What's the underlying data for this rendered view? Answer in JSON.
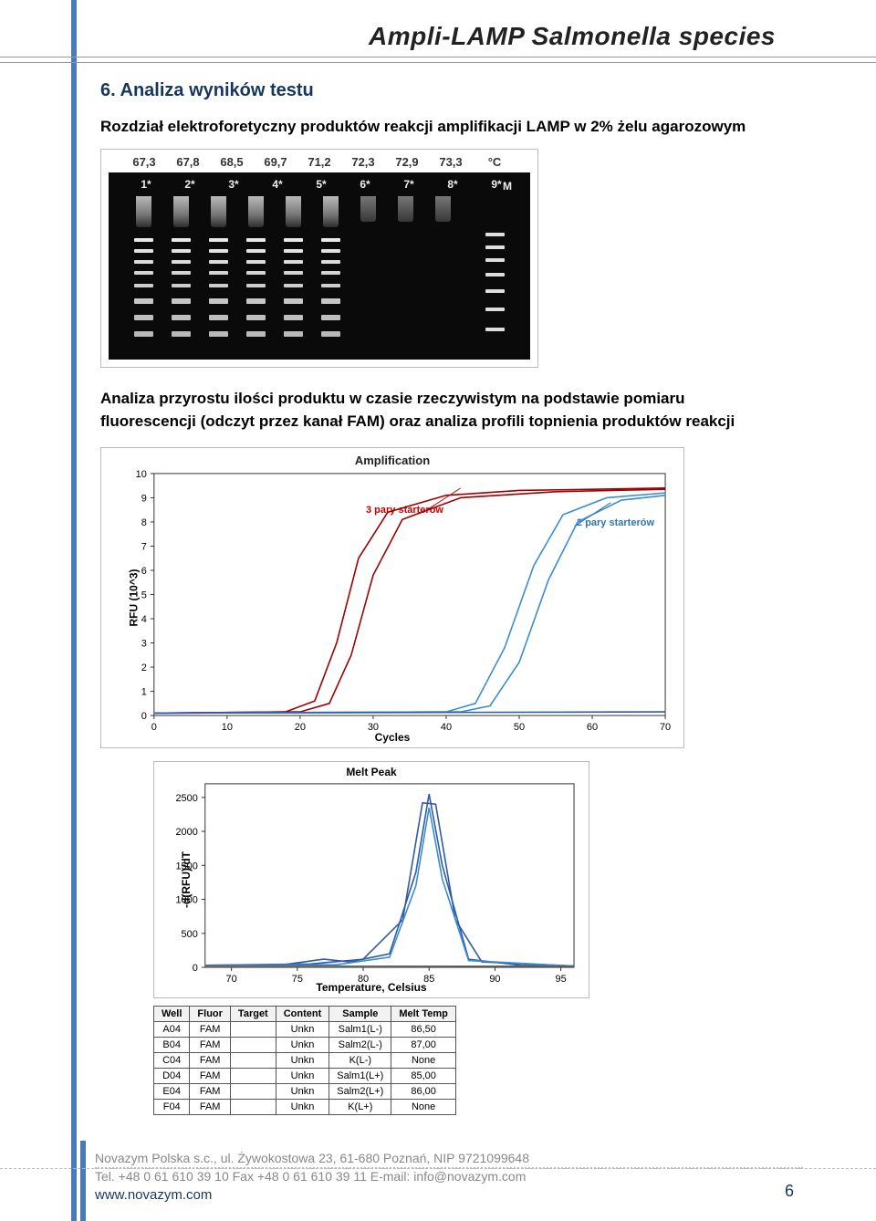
{
  "doc_title": "Ampli-LAMP Salmonella species",
  "section_heading": "6. Analiza wyników testu",
  "para1": "Rozdział elektroforetyczny produktów reakcji amplifikacji LAMP w 2% żelu agarozowym",
  "gel": {
    "temps": [
      "67,3",
      "67,8",
      "68,5",
      "69,7",
      "71,2",
      "72,3",
      "72,9",
      "73,3",
      "°C"
    ],
    "lane_labels": [
      "1*",
      "2*",
      "3*",
      "4*",
      "5*",
      "6*",
      "7*",
      "8*",
      "9*"
    ],
    "ladder_label": "M"
  },
  "caption": "Analiza przyrostu ilości produktu w czasie rzeczywistym na podstawie pomiaru fluorescencji (odczyt przez kanał FAM) oraz analiza profili topnienia produktów reakcji",
  "amp_chart": {
    "title": "Amplification",
    "ylabel": "RFU (10^3)",
    "xlabel": "Cycles",
    "yticks": [
      0,
      1,
      2,
      3,
      4,
      5,
      6,
      7,
      8,
      9,
      10
    ],
    "xticks": [
      0,
      10,
      20,
      30,
      40,
      50,
      60,
      70
    ],
    "ylim": [
      0,
      10
    ],
    "xlim": [
      0,
      70
    ],
    "callout1": {
      "text": "3 pary starterów",
      "color": "#cc0000"
    },
    "callout2": {
      "text": "2 pary starterów",
      "color": "#2e74b5"
    },
    "series": [
      {
        "color": "#9c0000",
        "points": [
          [
            0,
            0.1
          ],
          [
            18,
            0.15
          ],
          [
            22,
            0.6
          ],
          [
            25,
            3
          ],
          [
            28,
            6.5
          ],
          [
            32,
            8.4
          ],
          [
            40,
            9.1
          ],
          [
            50,
            9.3
          ],
          [
            60,
            9.35
          ],
          [
            70,
            9.4
          ]
        ]
      },
      {
        "color": "#9c0000",
        "points": [
          [
            0,
            0.1
          ],
          [
            20,
            0.15
          ],
          [
            24,
            0.5
          ],
          [
            27,
            2.5
          ],
          [
            30,
            5.8
          ],
          [
            34,
            8.1
          ],
          [
            42,
            9.0
          ],
          [
            55,
            9.25
          ],
          [
            70,
            9.35
          ]
        ]
      },
      {
        "color": "#3a8dd0",
        "points": [
          [
            0,
            0.1
          ],
          [
            40,
            0.15
          ],
          [
            44,
            0.5
          ],
          [
            48,
            2.8
          ],
          [
            52,
            6.2
          ],
          [
            56,
            8.3
          ],
          [
            62,
            9.0
          ],
          [
            70,
            9.2
          ]
        ]
      },
      {
        "color": "#3a8dd0",
        "points": [
          [
            0,
            0.1
          ],
          [
            42,
            0.15
          ],
          [
            46,
            0.4
          ],
          [
            50,
            2.2
          ],
          [
            54,
            5.6
          ],
          [
            58,
            8.0
          ],
          [
            64,
            8.9
          ],
          [
            70,
            9.1
          ]
        ]
      },
      {
        "color": "#2e5aa8",
        "points": [
          [
            0,
            0.1
          ],
          [
            70,
            0.15
          ]
        ]
      }
    ]
  },
  "melt_chart": {
    "title": "Melt Peak",
    "ylabel": "-d(RFU)/dT",
    "xlabel": "Temperature, Celsius",
    "yticks": [
      0,
      500,
      1000,
      1500,
      2000,
      2500
    ],
    "xticks": [
      70,
      75,
      80,
      85,
      90,
      95
    ],
    "ylim": [
      0,
      2700
    ],
    "xlim": [
      68,
      96
    ],
    "series": [
      {
        "color": "#2e5aa8",
        "points": [
          [
            68,
            30
          ],
          [
            74,
            40
          ],
          [
            77,
            120
          ],
          [
            79,
            80
          ],
          [
            82,
            200
          ],
          [
            84,
            1400
          ],
          [
            85,
            2550
          ],
          [
            86,
            1500
          ],
          [
            88,
            120
          ],
          [
            92,
            30
          ],
          [
            96,
            20
          ]
        ]
      },
      {
        "color": "#2e5aa8",
        "points": [
          [
            68,
            30
          ],
          [
            76,
            50
          ],
          [
            80,
            120
          ],
          [
            83,
            700
          ],
          [
            84.5,
            2420
          ],
          [
            85.5,
            2400
          ],
          [
            87,
            700
          ],
          [
            89,
            80
          ],
          [
            96,
            20
          ]
        ]
      },
      {
        "color": "#3a8dd0",
        "points": [
          [
            68,
            25
          ],
          [
            78,
            40
          ],
          [
            82,
            150
          ],
          [
            84,
            1200
          ],
          [
            85,
            2350
          ],
          [
            86,
            1300
          ],
          [
            88,
            100
          ],
          [
            96,
            18
          ]
        ]
      },
      {
        "color": "#666",
        "points": [
          [
            68,
            20
          ],
          [
            96,
            18
          ]
        ]
      }
    ]
  },
  "melt_table": {
    "headers": [
      "Well",
      "Fluor",
      "Target",
      "Content",
      "Sample",
      "Melt Temp"
    ],
    "rows": [
      [
        "A04",
        "FAM",
        "",
        "Unkn",
        "Salm1(L-)",
        "86,50"
      ],
      [
        "B04",
        "FAM",
        "",
        "Unkn",
        "Salm2(L-)",
        "87,00"
      ],
      [
        "C04",
        "FAM",
        "",
        "Unkn",
        "K(L-)",
        "None"
      ],
      [
        "D04",
        "FAM",
        "",
        "Unkn",
        "Salm1(L+)",
        "85,00"
      ],
      [
        "E04",
        "FAM",
        "",
        "Unkn",
        "Salm2(L+)",
        "86,00"
      ],
      [
        "F04",
        "FAM",
        "",
        "Unkn",
        "K(L+)",
        "None"
      ]
    ]
  },
  "footer": {
    "line1": "Novazym Polska s.c., ul. Żywokostowa 23, 61-680 Poznań, NIP 9721099648",
    "line2": "Tel. +48 0 61 610 39 10 Fax +48 0 61 610 39 11 E-mail: info@novazym.com",
    "url": "www.novazym.com"
  },
  "page_number": "6"
}
